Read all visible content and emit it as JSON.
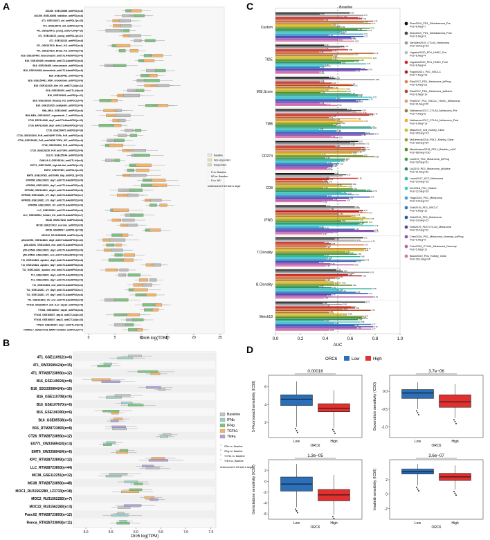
{
  "panels": {
    "A": {
      "letter": "A",
      "xlabel": "Orc6 log(TPM)",
      "xticks": [
        "0",
        "5",
        "10",
        "15",
        "20",
        "25"
      ],
      "legend_fill": [
        "Baseline",
        "Non-responders",
        "Responders"
      ],
      "legend_test": [
        "R vs. Baseline",
        "NR vs. Baseline",
        "R vs. NR"
      ],
      "legend_note": "Underscored if left side is larger",
      "rows": [
        "402256_GSE140856_antiPD1(n=8)",
        "402256_GSE140856_radiation_antiPD1(n=8)",
        "4T1_GSE136472_old_antiPDL1(n=15)",
        "4T1_GSE136472_old_antiPDL1(n=8)",
        "4T1_GSE136472_young_antiCTLA4(n=19)",
        "4T1_GSE136472_young_antiPDL1(n=17)",
        "4T1_GSE152223_antiPD1(n=8)",
        "4T1_GSE137810_Bcor1_KO_antiPD1(n=8)",
        "4T1_GSE137810_Brca2_KO_antiPD1(n=8)",
        "B16_GSE109495_ketoconazole_antiCTLA4antiPD1(n=6)",
        "B16_GSE109495_lenvatinib_antiCTLA4antiPD1(n=6)",
        "B16_GSE109495_ketoconazole_antiPD1(n=6)",
        "B16_GSE109495_binimetinib_antiCTLA4antiPD1(n=6)",
        "B16_GSE150481_antiPD1(n=8)",
        "B16_GSE150481_MDK_knockdown_antiPD1(n=8)",
        "B16_GSE143425_Aire_KO_antiCTLA4(n=12)",
        "B16_GSE152925_antiCTLA4(n=9)",
        "B16_GSE152925_antiPD1(n=12)",
        "B16_GSE152925_Mus2a1_KO_antiPDL1(n=6)",
        "B16_GSE152925_oxaliplatin_antiPD1(n=6)",
        "BNL-MEA_GSE140947_antiPD1(n=6)",
        "BNL-MEA_GSE140947_regorafenib_T_antiPD1(n=6)",
        "CT26_ERP114266_day7_antiCTLA4antiPD1(n=10)",
        "CT26_ERP114266_day7_antiCTLA4antiPD1(n=10)",
        "CT26_GSE159475_antiPD1(n=16)",
        "CT26_GSE153230_FcR_antiGARP-TGFb_FcR_antiPD1(n=8)",
        "CT26_GSE153230_FcR_antiGARP-TGFb_WT_antiPD1(n=8)",
        "CT26_GSE153230_FcR_antiPD1(n=8)",
        "CT26_GSE153230_FcR_antiTGFb_antiPD1(n=8)",
        "D1LV2_GSE155144_antiPD1(n=8)",
        "D4M.3A.3_GSE155144_antiCTLA4(n=8)",
        "E0771_GSE174655_high-fat-diet_antiPD1(n=10)",
        "EMT6_GSE107801_antiPDL1(n=19)",
        "EMT6_GSE107801_antiTGFb_trap_antiPDL1(n=20)",
        "KPR058_GSE124821_day7_antiCTLA4antiPD1(n=8)",
        "KPR058_GSE124821_day7_antiCTLA4antiPD1(n=8)",
        "KPR058_GSE124821_day14_antiCTLA4antiPD1(n=8)",
        "KPR058_GSE124821_UV_day1_antiCTLA4antiPD1(n=7)",
        "KPR058_GSE124821_UV_day7_antiCTLA4antiPD1(n=8)",
        "KPR058_GSE124821_UV_antiCTLA4antiPD1(n=9)",
        "LLC_GSE159512_antiCTLA4antiPD1(n=9)",
        "LLC_GSE159512_Setdb1_KO_antiCTLA4antiPD1(n=7)",
        "MC38_GSE173162_antiPDL1(n=8)",
        "MC38_GSE172412_exercise_antiPD1(n=8)",
        "MC38_GSE95017_antiPDL1(n=16)",
        "MOC22_RJ131562285_antiPDL1(n=8)",
        "p53-/22351_GSE124821_day3_antiCTLA4antiPD1(n=13)",
        "p53-/22351_GSE124821_end_antiCTLA4antiPD1(n=9)",
        "p53-/23548_GSE124821_day3_antiCTLA4antiPD1(n=8)",
        "p53-/23548_GSE124821_end_antiCTLA4antiPD1(n=13)",
        "T11_GSE124821_Apobec_day3_antiCTLA4antiPD1(n=8)",
        "T11_GSE124821_Apobec_day7_antiCTLA4antiPD1(n=8)",
        "T11_GSE124821_Apobec_end_antiCTLA4antiPD1(n=8)",
        "T11_GSE124821_day3_antiCTLA4antiPD1(n=9)",
        "T11_GSE124821_day7_antiCTLA4antiPD1(n=9)",
        "T11_GSE124821_end_antiCTLA4antiPD1(n=9)",
        "T11_GSE124821_UV_day3_antiCTLA4antiPD1(n=7)",
        "T11_GSE124821_UV_day7_antiCTLA4antiPD1(n=8)",
        "T11_GSE124821_UV_end_antiCTLA4antiPD1(n=8)",
        "YTN16_GSE166027_anti_IL17_day19_antiPD1(n=8)",
        "YTN16_GSE166027_day10_antiPD1(n=8)",
        "YTN16_GSE166027_day14_antiCTLA4(n=10)",
        "YTN16_GSE166027_day21_antiCTLA4(n=10)",
        "YTN16_GSE166027_day7_antiCTLA4(n=8)",
        "YUMM1.7_GSE107725_BRAF-inhibitor_antiPDL1(n=7)"
      ]
    },
    "B": {
      "letter": "B",
      "xlabel": "Orc6 log(TPM)",
      "xticks": [
        "5.0",
        "5.5",
        "6.0",
        "6.5",
        "7.0",
        "7.5"
      ],
      "legend_fill": [
        "Baseline",
        "IFNb",
        "IFNg",
        "TGFb1",
        "TNFa"
      ],
      "legend_test": [
        "IFNb vs. Baseline",
        "IFNg vs. Baseline",
        "TGFb1 vs. Baseline",
        "TNFa vs. Baseline"
      ],
      "legend_note": "Underscored if left side is larger",
      "rows": [
        "4T1_GSE110912(n=6)",
        "4T1_XW33589424(n=15)",
        "4T1_RTM28723893(n=12)",
        "B16_GSE149024(n=8)",
        "B16_SSG33589424(n=16)",
        "B16_GSE110708(n=6)",
        "B16_GSE107670(n=6)",
        "B16_GSE106390(n=6)",
        "B16_GSE85538(n=5)",
        "B16_RTM28723893(n=8)",
        "CT26_RTM28723893(n=12)",
        "E0771_XW33589424(n=4)",
        "EMT6_XW33589424(n=6)",
        "KPC_RTM28723893(n=12)",
        "LLC_RTM28723893(n=44)",
        "MC38_GSE112251(n=12)",
        "MC38_RTM28723893(n=48)",
        "MOC1_RU31562280_LZ3733(n=18)",
        "MOC2_RU31562283(n=7)",
        "MOC22_RU31562283(n=4)",
        "Panc02_RTM28723893(n=12)",
        "Renca_RTM28723893(n=11)"
      ]
    },
    "C": {
      "letter": "C",
      "xlabel": "AUC",
      "xticks": [
        "0.0",
        "0.2",
        "0.4",
        "0.6",
        "0.8",
        "1.0"
      ],
      "baseline_label": "Baseline",
      "groups": [
        "Custom",
        "TIDE",
        "MSI.Score",
        "TMB",
        "CD274",
        "CD8",
        "IFNG",
        "T.Clonality",
        "B.Clonality",
        "Merck18"
      ],
      "legend": [
        {
          "name": "Zhao2019_PD1_Glioblastoma_Pre",
          "n": "Pos=8,Neg=7",
          "color": "#111111"
        },
        {
          "name": "Zhao2019_PD1_Glioblastoma_Post",
          "n": "Pos=6,Neg=3",
          "color": "#4a4a4a"
        },
        {
          "name": "VanAllen2015_CTLA4_Melanoma",
          "n": "Pos=19,Neg=23",
          "color": "#9a9a9a"
        },
        {
          "name": "Uppaluri2020_PD1_HNSC_Pre",
          "n": "Pos=8,Neg=4",
          "color": "#bdbdbd"
        },
        {
          "name": "Uppaluri2020_PD1_HNSC_Post",
          "n": "Pos=8,Neg=4",
          "color": "#d42828"
        },
        {
          "name": "Ruppin2021_PD1_NSCLC",
          "n": "Pos=7,Neg=13",
          "color": "#b22222"
        },
        {
          "name": "Riaz2017_PD1_Melanoma_IpiProg",
          "n": "Pos=5,Neg=21",
          "color": "#e8804a"
        },
        {
          "name": "Riaz2017_PD1_Melanoma_IpiNaive",
          "n": "Pos=6,Neg=19",
          "color": "#b04a1e"
        },
        {
          "name": "Prat2017_PD1_NSCLC_HNSC_Melanoma",
          "n": "Pos=11,Neg=22",
          "color": "#d8a070"
        },
        {
          "name": "Nathanson2017_CTLA4_Melanoma_Pre",
          "n": "Pos=4,Neg=5",
          "color": "#a07840"
        },
        {
          "name": "Nathanson2017_CTLA4_Melanoma_Post",
          "n": "Pos=6,Neg=13",
          "color": "#f0b020"
        },
        {
          "name": "Miao2019_ICB_Kidney_Clear",
          "n": "Pos=20,Neg=13",
          "color": "#c8c020"
        },
        {
          "name": "McDermott2018_PDL1_Kidney_Clear",
          "n": "Pos=18,Neg=64",
          "color": "#90a030"
        },
        {
          "name": "Mariathasan2018_PDL1_Bladder_mUC",
          "n": "Pos=68,Neg=230",
          "color": "#5a8a2a"
        },
        {
          "name": "Liu2019_PD1_Melanoma_IpiProg",
          "n": "Pos=16,Neg=31",
          "color": "#3aa040"
        },
        {
          "name": "Liu2019_PD1_Melanoma_IpiNaive",
          "n": "Pos=11,Neg=33",
          "color": "#2a8a6a"
        },
        {
          "name": "Lauss2017_ACT_Melanoma",
          "n": "Pos=10,Neg=15",
          "color": "#30b8a0"
        },
        {
          "name": "Kim2018_PD1_Gastric",
          "n": "Pos=12,Neg=33",
          "color": "#40c8c8"
        },
        {
          "name": "Hugo2016_PD1_Melanoma",
          "n": "Pos=14,Neg=12",
          "color": "#3aa8d8"
        },
        {
          "name": "Gide2019_PD1_NSCLC",
          "n": "Pos=9,Neg=12",
          "color": "#2a80c0"
        },
        {
          "name": "Gide2019_PD1_Melanoma",
          "n": "Pos=19,Neg=22",
          "color": "#3050b0"
        },
        {
          "name": "Gide2019_PD1+CTLA4_Melanoma",
          "n": "Pos=21,Neg=11",
          "color": "#6040a8"
        },
        {
          "name": "Chen2016_PD1_Melanoma_Nonresp_IpiProg",
          "n": "Pos=9,Neg=9",
          "color": "#9050b8"
        },
        {
          "name": "Chen2016_CTLA4_Melanoma_Nonresp",
          "n": "Pos=5,Neg=11",
          "color": "#c060b0"
        },
        {
          "name": "Braun2020_PD1_Kidney_Clear",
          "n": "Pos=201,Neg=94",
          "color": "#e070a0"
        }
      ]
    },
    "D": {
      "letter": "D",
      "legend_title": "ORC6",
      "legend_low": "Low",
      "legend_high": "High",
      "low_color": "#2a6fb8",
      "high_color": "#e03030",
      "subplots": [
        {
          "ylabel": "5-Fluorouracil sensitivity (IC50)",
          "pvalue": "0.00016",
          "xlabel": "ORC6",
          "cats": [
            "Low",
            "High"
          ],
          "yticks": [
            "2",
            "4",
            "6"
          ],
          "low": {
            "q1": 3.9,
            "med": 4.6,
            "q3": 5.1,
            "wmin": 1.5,
            "wmax": 6.6
          },
          "high": {
            "q1": 3.2,
            "med": 3.6,
            "q3": 4.1,
            "wmin": 1.4,
            "wmax": 5.6
          },
          "ymin": 0.3,
          "ymax": 7.3
        },
        {
          "ylabel": "Doxorubicin sensitivity (IC50)",
          "pvalue": "3.7e−06",
          "xlabel": "ORC6",
          "cats": [
            "Low",
            "High"
          ],
          "yticks": [
            "-1.0",
            "-0.5",
            "0.0"
          ],
          "low": {
            "q1": -0.2,
            "med": -0.05,
            "q3": 0.05,
            "wmin": -0.5,
            "wmax": 0.25
          },
          "high": {
            "q1": -0.45,
            "med": -0.3,
            "q3": -0.1,
            "wmin": -0.75,
            "wmax": 0.2
          },
          "ymin": -1.3,
          "ymax": 0.45
        },
        {
          "ylabel": "Gemcitabine sensitivity (IC50)",
          "pvalue": "1.3e−05",
          "xlabel": "ORC6",
          "cats": [
            "Low",
            "High"
          ],
          "yticks": [
            "-6",
            "-4",
            "-2",
            "0",
            "2"
          ],
          "low": {
            "q1": -1.8,
            "med": -0.5,
            "q3": 0.8,
            "wmin": -4.8,
            "wmax": 3.2
          },
          "high": {
            "q1": -3.6,
            "med": -2.5,
            "q3": -1.5,
            "wmin": -6.2,
            "wmax": 1.2
          },
          "ymin": -7,
          "ymax": 4
        },
        {
          "ylabel": "Imatinib sensitivity (IC50)",
          "pvalue": "3.6e−07",
          "xlabel": "ORC6",
          "cats": [
            "Low",
            "High"
          ],
          "yticks": [
            "-2",
            "0",
            "2"
          ],
          "low": {
            "q1": 2.8,
            "med": 3.1,
            "q3": 3.5,
            "wmin": 1.2,
            "wmax": 4.2
          },
          "high": {
            "q1": 1.9,
            "med": 2.4,
            "q3": 2.9,
            "wmin": 0.6,
            "wmax": 4.0
          },
          "ymin": -3.5,
          "ymax": 4.8
        }
      ]
    }
  }
}
